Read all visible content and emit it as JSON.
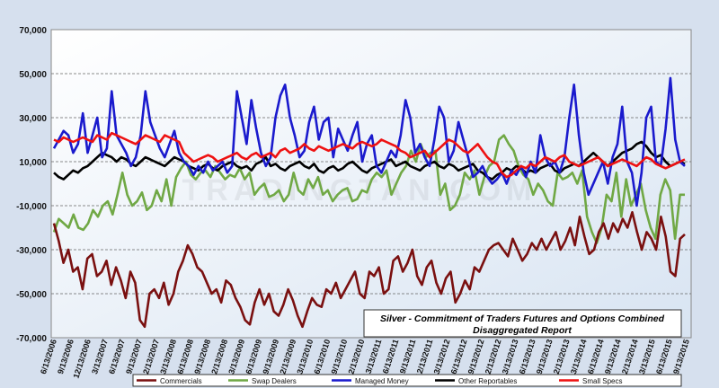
{
  "chart_data": {
    "type": "line",
    "title": "Silver - Commitment of Traders Futures and Options Combined Disaggregated Report",
    "title_lines": [
      "Silver - Commitment of Traders Futures and Options Combined",
      "Disaggregated  Report"
    ],
    "watermark": "TRADINGTAN.COM",
    "ylim": [
      -70000,
      70000
    ],
    "y_ticks": [
      70000,
      50000,
      30000,
      10000,
      -10000,
      -30000,
      -50000,
      -70000
    ],
    "y_tick_labels": [
      "70,000",
      "50,000",
      "30,000",
      "10,000",
      "-10,000",
      "-30,000",
      "-50,000",
      "-70,000"
    ],
    "x_tick_labels": [
      "6/13/2006",
      "9/13/2006",
      "12/13/2006",
      "3/13/2007",
      "6/13/2007",
      "9/13/2007",
      "12/13/2007",
      "3/13/2008",
      "6/13/2008",
      "9/13/2008",
      "12/13/2008",
      "3/13/2009",
      "6/13/2009",
      "9/13/2009",
      "12/13/2009",
      "3/13/2010",
      "6/13/2010",
      "9/13/2010",
      "12/13/2010",
      "3/13/2011",
      "6/13/2011",
      "9/13/2011",
      "12/13/2011",
      "3/13/2012",
      "6/13/2012",
      "9/13/2012",
      "12/13/2012",
      "3/13/2013",
      "6/13/2013",
      "9/13/2013",
      "12/13/2013",
      "3/13/2014",
      "6/13/2014",
      "9/13/2014",
      "12/13/2014",
      "3/13/2015",
      "6/13/2015",
      "9/13/2015"
    ],
    "legend_position": "bottom",
    "grid": "horizontal dashed",
    "series": [
      {
        "name": "Commercials",
        "color": "#7a1010",
        "values": [
          -18000,
          -26000,
          -36000,
          -30000,
          -40000,
          -38000,
          -48000,
          -34000,
          -32000,
          -42000,
          -40000,
          -35000,
          -46000,
          -38000,
          -44000,
          -52000,
          -40000,
          -45000,
          -62000,
          -65000,
          -50000,
          -48000,
          -52000,
          -45000,
          -55000,
          -50000,
          -40000,
          -35000,
          -28000,
          -32000,
          -38000,
          -40000,
          -45000,
          -50000,
          -48000,
          -54000,
          -44000,
          -46000,
          -52000,
          -56000,
          -62000,
          -64000,
          -54000,
          -48000,
          -55000,
          -50000,
          -58000,
          -60000,
          -55000,
          -48000,
          -53000,
          -60000,
          -65000,
          -58000,
          -52000,
          -55000,
          -56000,
          -48000,
          -50000,
          -45000,
          -52000,
          -48000,
          -44000,
          -40000,
          -50000,
          -52000,
          -40000,
          -42000,
          -38000,
          -50000,
          -48000,
          -35000,
          -33000,
          -40000,
          -36000,
          -30000,
          -42000,
          -46000,
          -38000,
          -35000,
          -45000,
          -50000,
          -43000,
          -40000,
          -54000,
          -50000,
          -44000,
          -48000,
          -38000,
          -40000,
          -35000,
          -30000,
          -28000,
          -27000,
          -30000,
          -33000,
          -25000,
          -30000,
          -35000,
          -32000,
          -27000,
          -30000,
          -25000,
          -30000,
          -26000,
          -22000,
          -30000,
          -26000,
          -20000,
          -28000,
          -15000,
          -24000,
          -32000,
          -30000,
          -22000,
          -18000,
          -25000,
          -18000,
          -22000,
          -16000,
          -20000,
          -13000,
          -22000,
          -30000,
          -22000,
          -25000,
          -30000,
          -15000,
          -24000,
          -40000,
          -42000,
          -25000,
          -23000
        ]
      },
      {
        "name": "Swap Dealers",
        "color": "#70a845",
        "values": [
          -22000,
          -16000,
          -18000,
          -20000,
          -14000,
          -20000,
          -21000,
          -18000,
          -12000,
          -15000,
          -10000,
          -8000,
          -14000,
          -5000,
          5000,
          -5000,
          -10000,
          -8000,
          -4000,
          -12000,
          -10000,
          -3000,
          -8000,
          2000,
          -10000,
          3000,
          7000,
          10000,
          4000,
          2000,
          5000,
          6000,
          3000,
          8000,
          5000,
          2000,
          4000,
          3000,
          7000,
          2000,
          5000,
          -5000,
          -2000,
          0,
          -6000,
          -5000,
          -3000,
          -8000,
          -5000,
          5000,
          -3000,
          -5000,
          2000,
          -2000,
          3000,
          -5000,
          -3000,
          -8000,
          -5000,
          -3000,
          -2000,
          -8000,
          -7000,
          -3000,
          -4000,
          2000,
          5000,
          3000,
          6000,
          -5000,
          0,
          5000,
          8000,
          15000,
          10000,
          18000,
          12000,
          14000,
          15000,
          -5000,
          0,
          -12000,
          -10000,
          -5000,
          5000,
          2000,
          6000,
          -5000,
          3000,
          8000,
          10000,
          20000,
          22000,
          18000,
          15000,
          8000,
          4000,
          2000,
          -5000,
          0,
          -3000,
          -8000,
          -10000,
          5000,
          2000,
          3000,
          5000,
          0,
          6000,
          -15000,
          -22000,
          -27000,
          -20000,
          -5000,
          -8000,
          5000,
          -15000,
          2000,
          -10000,
          -5000,
          0,
          -12000,
          -20000,
          -25000,
          -5000,
          2000,
          -3000,
          -25000,
          -5000,
          -5000
        ]
      },
      {
        "name": "Managed Money",
        "color": "#1a1acd",
        "values": [
          16000,
          20000,
          24000,
          22000,
          14000,
          18000,
          32000,
          14000,
          22000,
          30000,
          12000,
          16000,
          42000,
          22000,
          18000,
          14000,
          8000,
          12000,
          22000,
          42000,
          28000,
          22000,
          16000,
          12000,
          18000,
          24000,
          14000,
          10000,
          8000,
          4000,
          8000,
          5000,
          10000,
          6000,
          8000,
          10000,
          5000,
          8000,
          42000,
          30000,
          18000,
          38000,
          25000,
          14000,
          8000,
          12000,
          30000,
          40000,
          45000,
          30000,
          22000,
          12000,
          15000,
          28000,
          35000,
          20000,
          28000,
          30000,
          12000,
          25000,
          20000,
          15000,
          22000,
          28000,
          10000,
          18000,
          22000,
          8000,
          5000,
          10000,
          15000,
          12000,
          22000,
          38000,
          30000,
          14000,
          18000,
          12000,
          8000,
          20000,
          35000,
          30000,
          10000,
          15000,
          28000,
          20000,
          12000,
          3000,
          5000,
          8000,
          3000,
          0,
          2000,
          5000,
          0,
          6000,
          4000,
          8000,
          3000,
          10000,
          5000,
          22000,
          12000,
          8000,
          10000,
          5000,
          12000,
          30000,
          45000,
          22000,
          5000,
          -5000,
          0,
          5000,
          10000,
          0,
          12000,
          18000,
          35000,
          10000,
          5000,
          -10000,
          5000,
          30000,
          35000,
          10000,
          8000,
          25000,
          48000,
          20000,
          10000,
          8000
        ]
      },
      {
        "name": "Other Reportables",
        "color": "#000000",
        "values": [
          5000,
          3000,
          2000,
          4000,
          6000,
          5000,
          7000,
          8000,
          10000,
          12000,
          14000,
          13000,
          12000,
          10000,
          12000,
          11000,
          9000,
          8000,
          10000,
          12000,
          11000,
          10000,
          9000,
          8000,
          10000,
          12000,
          11000,
          10000,
          8000,
          7000,
          6000,
          8000,
          9000,
          7000,
          6000,
          8000,
          9000,
          10000,
          8000,
          7000,
          8000,
          6000,
          9000,
          10000,
          12000,
          8000,
          9000,
          7000,
          6000,
          8000,
          9000,
          10000,
          8000,
          7000,
          9000,
          6000,
          5000,
          7000,
          8000,
          6000,
          7000,
          9000,
          10000,
          8000,
          6000,
          5000,
          7000,
          8000,
          9000,
          10000,
          11000,
          8000,
          9000,
          10000,
          8000,
          7000,
          6000,
          8000,
          9000,
          10000,
          8000,
          7000,
          9000,
          8000,
          6000,
          7000,
          8000,
          9000,
          6000,
          5000,
          3000,
          2000,
          4000,
          5000,
          7000,
          6000,
          8000,
          7000,
          5000,
          6000,
          5000,
          7000,
          8000,
          9000,
          6000,
          5000,
          7000,
          8000,
          9000,
          8000,
          10000,
          12000,
          14000,
          12000,
          10000,
          8000,
          10000,
          12000,
          14000,
          15000,
          16000,
          18000,
          19000,
          17000,
          14000,
          12000,
          13000,
          10000,
          8000,
          9000,
          10000,
          9000
        ]
      },
      {
        "name": "Small Specs",
        "color": "#ee1111",
        "values": [
          20000,
          19000,
          21000,
          20000,
          19000,
          20000,
          21000,
          20000,
          19000,
          22000,
          21000,
          20000,
          23000,
          22000,
          21000,
          20000,
          19000,
          18000,
          20000,
          22000,
          21000,
          20000,
          19000,
          22000,
          21000,
          20000,
          19000,
          14000,
          12000,
          10000,
          11000,
          12000,
          13000,
          12000,
          10000,
          11000,
          12000,
          13000,
          14000,
          12000,
          11000,
          13000,
          14000,
          12000,
          13000,
          14000,
          12000,
          15000,
          16000,
          14000,
          15000,
          16000,
          18000,
          16000,
          15000,
          17000,
          16000,
          15000,
          16000,
          17000,
          18000,
          17000,
          16000,
          18000,
          19000,
          18000,
          17000,
          18000,
          20000,
          19000,
          18000,
          17000,
          15000,
          14000,
          12000,
          13000,
          14000,
          15000,
          12000,
          14000,
          16000,
          18000,
          20000,
          19000,
          17000,
          15000,
          14000,
          16000,
          18000,
          15000,
          12000,
          10000,
          9000,
          5000,
          3000,
          4000,
          6000,
          8000,
          7000,
          9000,
          8000,
          10000,
          12000,
          11000,
          10000,
          12000,
          13000,
          10000,
          9000,
          8000,
          9000,
          10000,
          11000,
          12000,
          10000,
          8000,
          9000,
          10000,
          11000,
          10000,
          9000,
          8000,
          10000,
          12000,
          11000,
          9000,
          8000,
          7000,
          8000,
          9000,
          10000,
          11000
        ]
      }
    ]
  }
}
